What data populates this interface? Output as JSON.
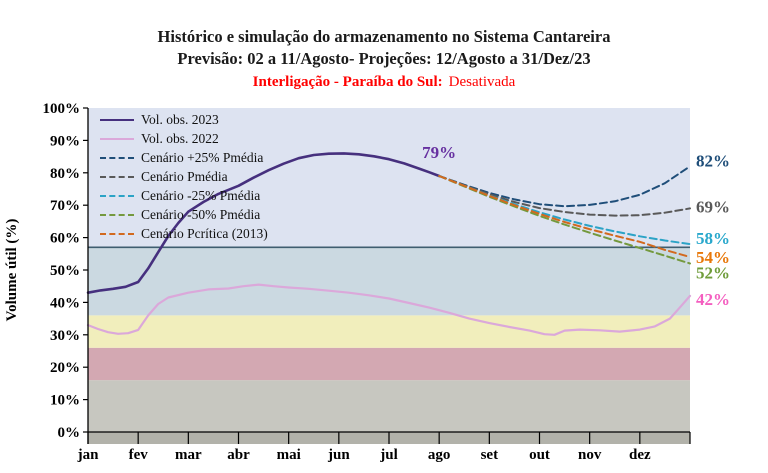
{
  "chart_data": {
    "type": "line",
    "title": "Histórico e simulação do armazenamento no Sistema Cantareira",
    "subtitle": "Previsão: 02 a 11/Agosto- Projeções: 12/Agosto a 31/Dez/23",
    "note_label": "Interligação - Paraíba do Sul:",
    "note_status": "Desativada",
    "note_color": "#ff0000",
    "ylabel": "Volume útil (%)",
    "ylim": [
      0,
      100
    ],
    "xlim": [
      0,
      12
    ],
    "grid": false,
    "legend_position": "top-left",
    "y_ticks": [
      0,
      10,
      20,
      30,
      40,
      50,
      60,
      70,
      80,
      90,
      100
    ],
    "y_tick_suffix": "%",
    "x_tick_labels": [
      "jan",
      "fev",
      "mar",
      "abr",
      "mai",
      "jun",
      "jul",
      "ago",
      "set",
      "out",
      "nov",
      "dez"
    ],
    "bands": [
      {
        "from": 0,
        "to": 16,
        "color": "#c7c7c0"
      },
      {
        "from": 16,
        "to": 26,
        "color": "#d3a8b2"
      },
      {
        "from": 26,
        "to": 36,
        "color": "#f1eebc"
      },
      {
        "from": 36,
        "to": 57,
        "color": "#cbd9e1"
      },
      {
        "from": 57,
        "to": 100,
        "color": "#dde3f1"
      }
    ],
    "axis_strip_color": "#b2b2aa",
    "reference_line": {
      "y": 57,
      "color": "#3f5e70"
    },
    "series": [
      {
        "name": "Vol. obs. 2023",
        "color": "#46307e",
        "style": "solid",
        "width": 2.6,
        "points": [
          [
            0,
            43
          ],
          [
            0.25,
            43.7
          ],
          [
            0.5,
            44.2
          ],
          [
            0.75,
            44.8
          ],
          [
            1,
            46.3
          ],
          [
            1.2,
            50.5
          ],
          [
            1.4,
            55.5
          ],
          [
            1.6,
            60.5
          ],
          [
            1.8,
            64.5
          ],
          [
            2,
            68
          ],
          [
            2.3,
            71
          ],
          [
            2.6,
            73.5
          ],
          [
            3,
            76
          ],
          [
            3.3,
            78.5
          ],
          [
            3.6,
            80.8
          ],
          [
            3.9,
            82.8
          ],
          [
            4.2,
            84.5
          ],
          [
            4.5,
            85.5
          ],
          [
            4.8,
            85.9
          ],
          [
            5.1,
            86
          ],
          [
            5.4,
            85.7
          ],
          [
            5.7,
            85.1
          ],
          [
            6,
            84.2
          ],
          [
            6.3,
            82.9
          ],
          [
            6.6,
            81.3
          ],
          [
            6.8,
            80.2
          ],
          [
            7,
            79
          ]
        ]
      },
      {
        "name": "Vol. obs. 2022",
        "color": "#dba8da",
        "style": "solid",
        "width": 2.2,
        "points": [
          [
            0,
            33
          ],
          [
            0.2,
            31.8
          ],
          [
            0.4,
            30.8
          ],
          [
            0.6,
            30.3
          ],
          [
            0.8,
            30.5
          ],
          [
            1,
            31.5
          ],
          [
            1.2,
            36
          ],
          [
            1.4,
            39.5
          ],
          [
            1.6,
            41.5
          ],
          [
            2,
            43
          ],
          [
            2.4,
            44
          ],
          [
            2.8,
            44.3
          ],
          [
            3.1,
            45
          ],
          [
            3.4,
            45.5
          ],
          [
            3.7,
            45
          ],
          [
            4,
            44.6
          ],
          [
            4.4,
            44.2
          ],
          [
            4.8,
            43.6
          ],
          [
            5.2,
            43
          ],
          [
            5.6,
            42.2
          ],
          [
            6,
            41.2
          ],
          [
            6.4,
            39.8
          ],
          [
            6.8,
            38.4
          ],
          [
            7.2,
            36.8
          ],
          [
            7.6,
            35
          ],
          [
            8,
            33.6
          ],
          [
            8.4,
            32.4
          ],
          [
            8.8,
            31.3
          ],
          [
            9.1,
            30.2
          ],
          [
            9.3,
            30
          ],
          [
            9.5,
            31.3
          ],
          [
            9.8,
            31.6
          ],
          [
            10.2,
            31.4
          ],
          [
            10.6,
            31
          ],
          [
            11,
            31.6
          ],
          [
            11.3,
            32.6
          ],
          [
            11.6,
            35
          ],
          [
            11.8,
            38.5
          ],
          [
            12,
            42
          ]
        ]
      },
      {
        "name": "Cenário +25% Pmédia",
        "color": "#1f4e79",
        "style": "dashed",
        "width": 2,
        "points": [
          [
            7,
            79
          ],
          [
            7.5,
            76.3
          ],
          [
            8,
            73.8
          ],
          [
            8.5,
            71.8
          ],
          [
            9,
            70.3
          ],
          [
            9.5,
            69.7
          ],
          [
            10,
            70.1
          ],
          [
            10.5,
            71.2
          ],
          [
            11,
            73.2
          ],
          [
            11.5,
            76.8
          ],
          [
            12,
            82
          ]
        ]
      },
      {
        "name": "Cenário Pmédia",
        "color": "#595959",
        "style": "dashed",
        "width": 2,
        "points": [
          [
            7,
            79
          ],
          [
            7.5,
            76.1
          ],
          [
            8,
            73.4
          ],
          [
            8.5,
            71
          ],
          [
            9,
            69.1
          ],
          [
            9.5,
            67.9
          ],
          [
            10,
            67.1
          ],
          [
            10.5,
            66.8
          ],
          [
            11,
            66.9
          ],
          [
            11.5,
            67.7
          ],
          [
            12,
            69
          ]
        ]
      },
      {
        "name": "Cenário -25% Pmédia",
        "color": "#2ba3c6",
        "style": "dashed",
        "width": 2,
        "points": [
          [
            7,
            79
          ],
          [
            7.5,
            76
          ],
          [
            8,
            73
          ],
          [
            8.5,
            70.3
          ],
          [
            9,
            67.8
          ],
          [
            9.5,
            65.6
          ],
          [
            10,
            63.6
          ],
          [
            10.5,
            61.9
          ],
          [
            11,
            60.4
          ],
          [
            11.5,
            59.1
          ],
          [
            12,
            58
          ]
        ]
      },
      {
        "name": "Cenário -50% Pmédia",
        "color": "#74993e",
        "style": "dashed",
        "width": 2,
        "points": [
          [
            7,
            79
          ],
          [
            7.5,
            75.8
          ],
          [
            8,
            72.6
          ],
          [
            8.5,
            69.6
          ],
          [
            9,
            66.7
          ],
          [
            9.5,
            64
          ],
          [
            10,
            61.5
          ],
          [
            10.5,
            59.1
          ],
          [
            11,
            56.8
          ],
          [
            11.5,
            54.4
          ],
          [
            12,
            52
          ]
        ]
      },
      {
        "name": "Cenário Pcrítica (2013)",
        "color": "#d2691e",
        "style": "dashed",
        "width": 2,
        "points": [
          [
            7,
            79
          ],
          [
            7.5,
            76
          ],
          [
            8,
            72.9
          ],
          [
            8.5,
            70
          ],
          [
            9,
            67.3
          ],
          [
            9.5,
            64.8
          ],
          [
            10,
            62.6
          ],
          [
            10.5,
            60.6
          ],
          [
            11,
            58.7
          ],
          [
            11.5,
            56.2
          ],
          [
            12,
            54
          ]
        ]
      }
    ],
    "annotation": {
      "text": "79%",
      "x": 7,
      "y_value": 79,
      "dy": -18,
      "color": "#6630a0"
    },
    "end_labels": [
      {
        "text": "82%",
        "value": 82,
        "dy": -6,
        "color": "#1f4e79"
      },
      {
        "text": "69%",
        "value": 69,
        "dy": -2,
        "color": "#595959"
      },
      {
        "text": "58%",
        "value": 58,
        "dy": -6,
        "color": "#29a8cc"
      },
      {
        "text": "54%",
        "value": 54,
        "dy": 0,
        "color": "#e8780a"
      },
      {
        "text": "52%",
        "value": 52,
        "dy": 9,
        "color": "#6f9c3a"
      },
      {
        "text": "42%",
        "value": 42,
        "dy": 3,
        "color": "#f45fc0"
      }
    ]
  }
}
